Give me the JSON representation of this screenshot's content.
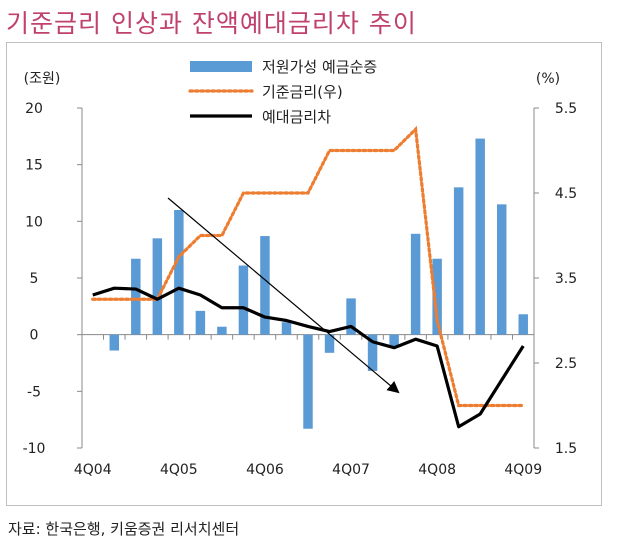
{
  "title": "기준금리 인상과 잔액예대금리차 추이",
  "source": "자료: 한국은행, 키움증권 리서치센터",
  "colors": {
    "bar": "#5b9bd5",
    "base_rate": "#ed7d31",
    "spread": "#000000",
    "title": "#c0406e"
  },
  "chart_data": {
    "type": "bar",
    "title": "기준금리 인상과 잔액예대금리차 추이",
    "left_unit": "(조원)",
    "right_unit": "(%)",
    "ylim_left": [
      -10,
      20
    ],
    "ylim_right": [
      1.5,
      5.5
    ],
    "left_ticks": [
      "20",
      "15",
      "10",
      "5",
      "0",
      "-5",
      "-10"
    ],
    "left_tick_values": [
      20,
      15,
      10,
      5,
      0,
      -5,
      -10
    ],
    "right_ticks": [
      "5.5",
      "4.5",
      "3.5",
      "2.5",
      "1.5"
    ],
    "right_tick_values": [
      5.5,
      4.5,
      3.5,
      2.5,
      1.5
    ],
    "x_labels": [
      "4Q04",
      "4Q05",
      "4Q06",
      "4Q07",
      "4Q08",
      "4Q09"
    ],
    "x_label_index": [
      0,
      4,
      8,
      12,
      16,
      20
    ],
    "n_periods": 21,
    "series": [
      {
        "name": "저원가성 예금순증",
        "type": "bar",
        "axis": "left",
        "values": [
          null,
          -1.4,
          6.7,
          8.5,
          11.0,
          2.1,
          0.7,
          6.1,
          8.7,
          1.1,
          -8.3,
          -1.6,
          3.2,
          -3.2,
          -1.0,
          8.9,
          6.7,
          13.0,
          17.3,
          11.5,
          1.8
        ]
      },
      {
        "name": "기준금리(우)",
        "type": "line",
        "style": "dotted",
        "axis": "right",
        "step": true,
        "values": [
          3.25,
          3.25,
          3.25,
          3.25,
          3.75,
          4.0,
          4.0,
          4.5,
          4.5,
          4.5,
          4.5,
          5.0,
          5.0,
          5.0,
          5.0,
          5.25,
          3.0,
          2.0,
          2.0,
          2.0,
          2.0
        ]
      },
      {
        "name": "예대금리차",
        "type": "line",
        "style": "solid",
        "axis": "right",
        "values": [
          3.3,
          3.38,
          3.37,
          3.25,
          3.38,
          3.3,
          3.15,
          3.15,
          3.04,
          3.0,
          2.93,
          2.87,
          2.93,
          2.75,
          2.68,
          2.78,
          2.7,
          1.75,
          1.9,
          2.3,
          2.7
        ]
      }
    ],
    "annotation": "trend-arrow"
  }
}
